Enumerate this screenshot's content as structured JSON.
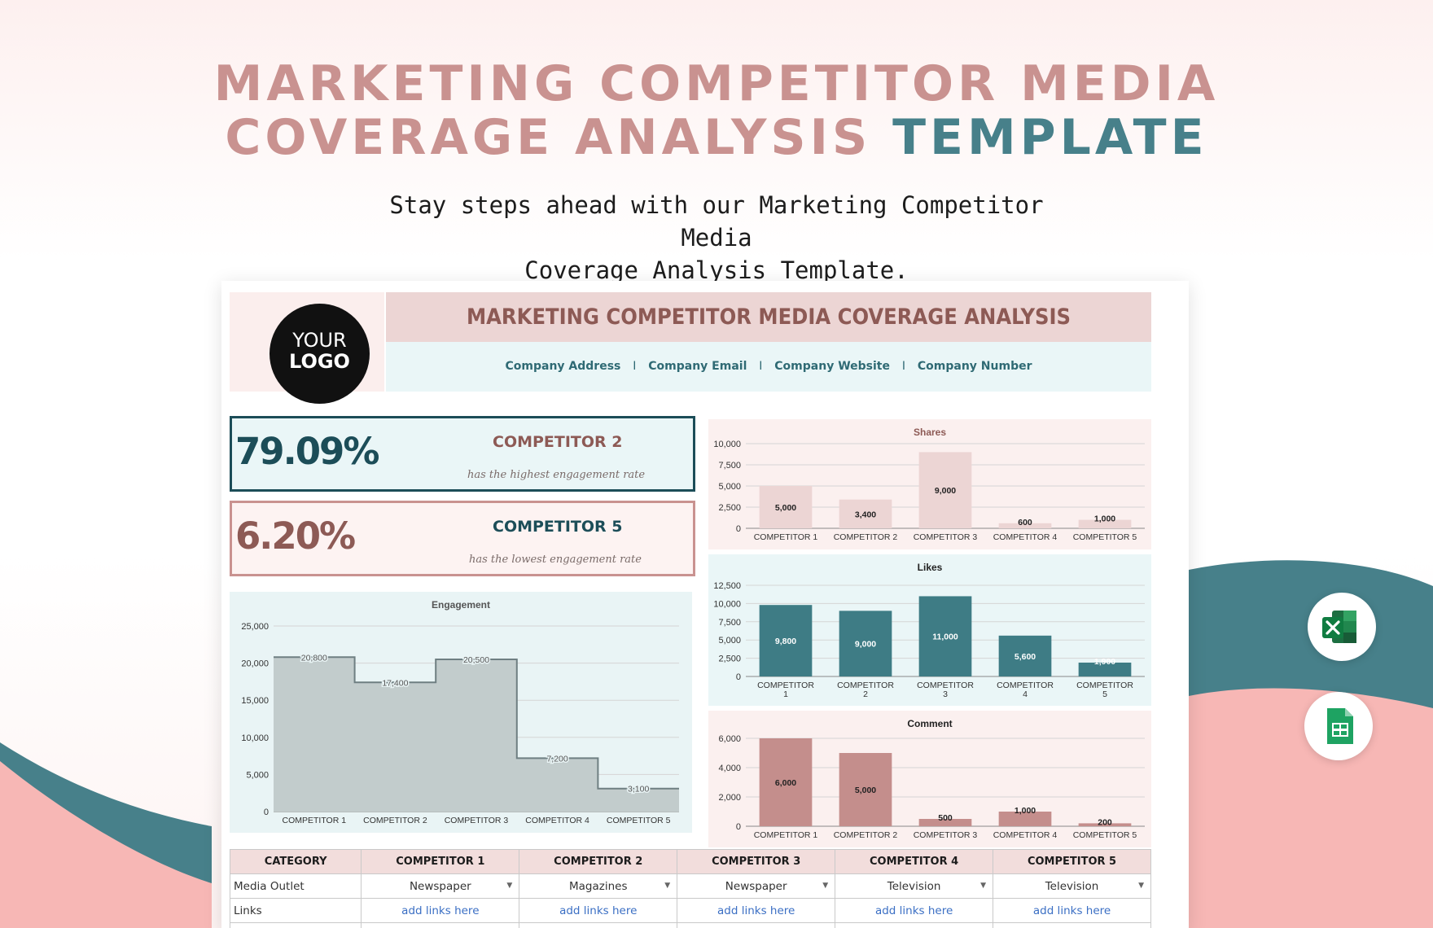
{
  "hero": {
    "title_line1": "MARKETING COMPETITOR MEDIA",
    "title_line2_a": "COVERAGE ANALYSIS",
    "title_line2_b": "TEMPLATE",
    "subtitle_line1": "Stay steps ahead with our Marketing Competitor Media",
    "subtitle_line2": "Coverage Analysis Template."
  },
  "sheet": {
    "logo_line1": "YOUR",
    "logo_line2": "LOGO",
    "title": "MARKETING COMPETITOR MEDIA COVERAGE ANALYSIS",
    "contact": {
      "address": "Company Address",
      "email": "Company Email",
      "website": "Company Website",
      "number": "Company Number",
      "separator": "I"
    },
    "kpis": [
      {
        "value": "79.09%",
        "name": "COMPETITOR 2",
        "desc": "has the highest engagement rate"
      },
      {
        "value": "6.20%",
        "name": "COMPETITOR 5",
        "desc": "has the lowest engagement rate"
      }
    ],
    "table": {
      "headers": [
        "CATEGORY",
        "COMPETITOR 1",
        "COMPETITOR 2",
        "COMPETITOR 3",
        "COMPETITOR 4",
        "COMPETITOR 5"
      ],
      "rows": [
        {
          "category": "Media Outlet",
          "values": [
            "Newspaper",
            "Magazines",
            "Newspaper",
            "Television",
            "Television"
          ]
        },
        {
          "category": "Links",
          "values": [
            "add links here",
            "add links here",
            "add links here",
            "add links here",
            "add links here"
          ]
        }
      ]
    }
  },
  "colors": {
    "teal": "#47808a",
    "dark_teal": "#1c4d58",
    "rose": "#c99290",
    "pink_bar": "#ecd5d4",
    "teal_bar": "#3e7c85",
    "rose_bar": "#c48e8c",
    "engagement_fill": "#c2cccc"
  },
  "icons": [
    "excel-icon",
    "google-sheets-icon"
  ],
  "chart_data": [
    {
      "type": "area",
      "title": "Engagement",
      "categories": [
        "COMPETITOR 1",
        "COMPETITOR 2",
        "COMPETITOR 3",
        "COMPETITOR 4",
        "COMPETITOR 5"
      ],
      "values": [
        20800,
        17400,
        20500,
        7200,
        3100
      ],
      "labels": [
        "20,800",
        "17,400",
        "20,500",
        "7,200",
        "3,100"
      ],
      "yticks": [
        "0",
        "5,000",
        "10,000",
        "15,000",
        "20,000",
        "25,000"
      ],
      "ylim": [
        0,
        25000
      ]
    },
    {
      "type": "bar",
      "title": "Shares",
      "categories": [
        "COMPETITOR 1",
        "COMPETITOR 2",
        "COMPETITOR 3",
        "COMPETITOR 4",
        "COMPETITOR 5"
      ],
      "values": [
        5000,
        3400,
        9000,
        600,
        1000
      ],
      "labels": [
        "5,000",
        "3,400",
        "9,000",
        "600",
        "1,000"
      ],
      "yticks": [
        "0",
        "2,500",
        "5,000",
        "7,500",
        "10,000"
      ],
      "ylim": [
        0,
        10000
      ]
    },
    {
      "type": "bar",
      "title": "Likes",
      "categories": [
        "COMPETITOR 1",
        "COMPETITOR 2",
        "COMPETITOR 3",
        "COMPETITOR 4",
        "COMPETITOR 5"
      ],
      "values": [
        9800,
        9000,
        11000,
        5600,
        1900
      ],
      "labels": [
        "9,800",
        "9,000",
        "11,000",
        "5,600",
        "1,900"
      ],
      "yticks": [
        "0",
        "2,500",
        "5,000",
        "7,500",
        "10,000",
        "12,500"
      ],
      "ylim": [
        0,
        12500
      ]
    },
    {
      "type": "bar",
      "title": "Comment",
      "categories": [
        "COMPETITOR 1",
        "COMPETITOR 2",
        "COMPETITOR 3",
        "COMPETITOR 4",
        "COMPETITOR 5"
      ],
      "values": [
        6000,
        5000,
        500,
        1000,
        200
      ],
      "labels": [
        "6,000",
        "5,000",
        "500",
        "1,000",
        "200"
      ],
      "yticks": [
        "0",
        "2,000",
        "4,000",
        "6,000"
      ],
      "ylim": [
        0,
        6000
      ]
    }
  ]
}
